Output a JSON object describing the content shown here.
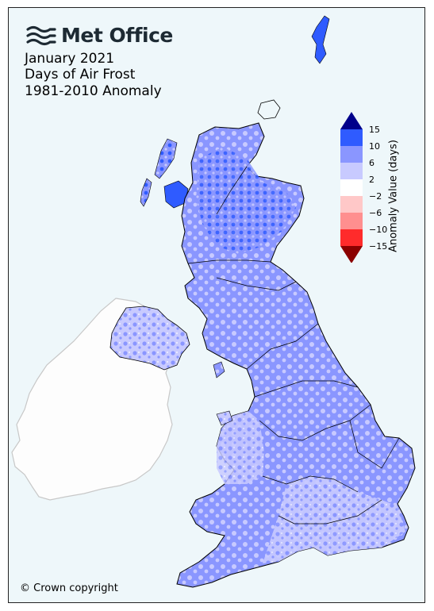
{
  "brand": {
    "name": "Met Office",
    "icon": "met-office-wave-logo"
  },
  "title_lines": [
    "January 2021",
    "Days of Air Frost",
    "1981-2010 Anomaly"
  ],
  "copyright": "© Crown copyright",
  "legend": {
    "label": "Anomaly Value (days)",
    "ticks": [
      "15",
      "10",
      "6",
      "2",
      "−2",
      "−6",
      "−10",
      "−15"
    ],
    "bands": [
      {
        "range": "> 15",
        "color": "#00008b"
      },
      {
        "range": "10 to 15",
        "color": "#2f5bff"
      },
      {
        "range": "6 to 10",
        "color": "#8a96ff"
      },
      {
        "range": "2 to 6",
        "color": "#c8caff"
      },
      {
        "range": "-2 to 2",
        "color": "#ffffff"
      },
      {
        "range": "-6 to -2",
        "color": "#ffc8c8"
      },
      {
        "range": "-10 to -6",
        "color": "#ff8f8f"
      },
      {
        "range": "-15 to -10",
        "color": "#ff2b2b"
      },
      {
        "range": "< -15",
        "color": "#8b0000"
      }
    ]
  },
  "colors": {
    "background": "#eef7fa",
    "ireland": "#fdfdfd",
    "ireland_border": "#c8c8c8"
  }
}
